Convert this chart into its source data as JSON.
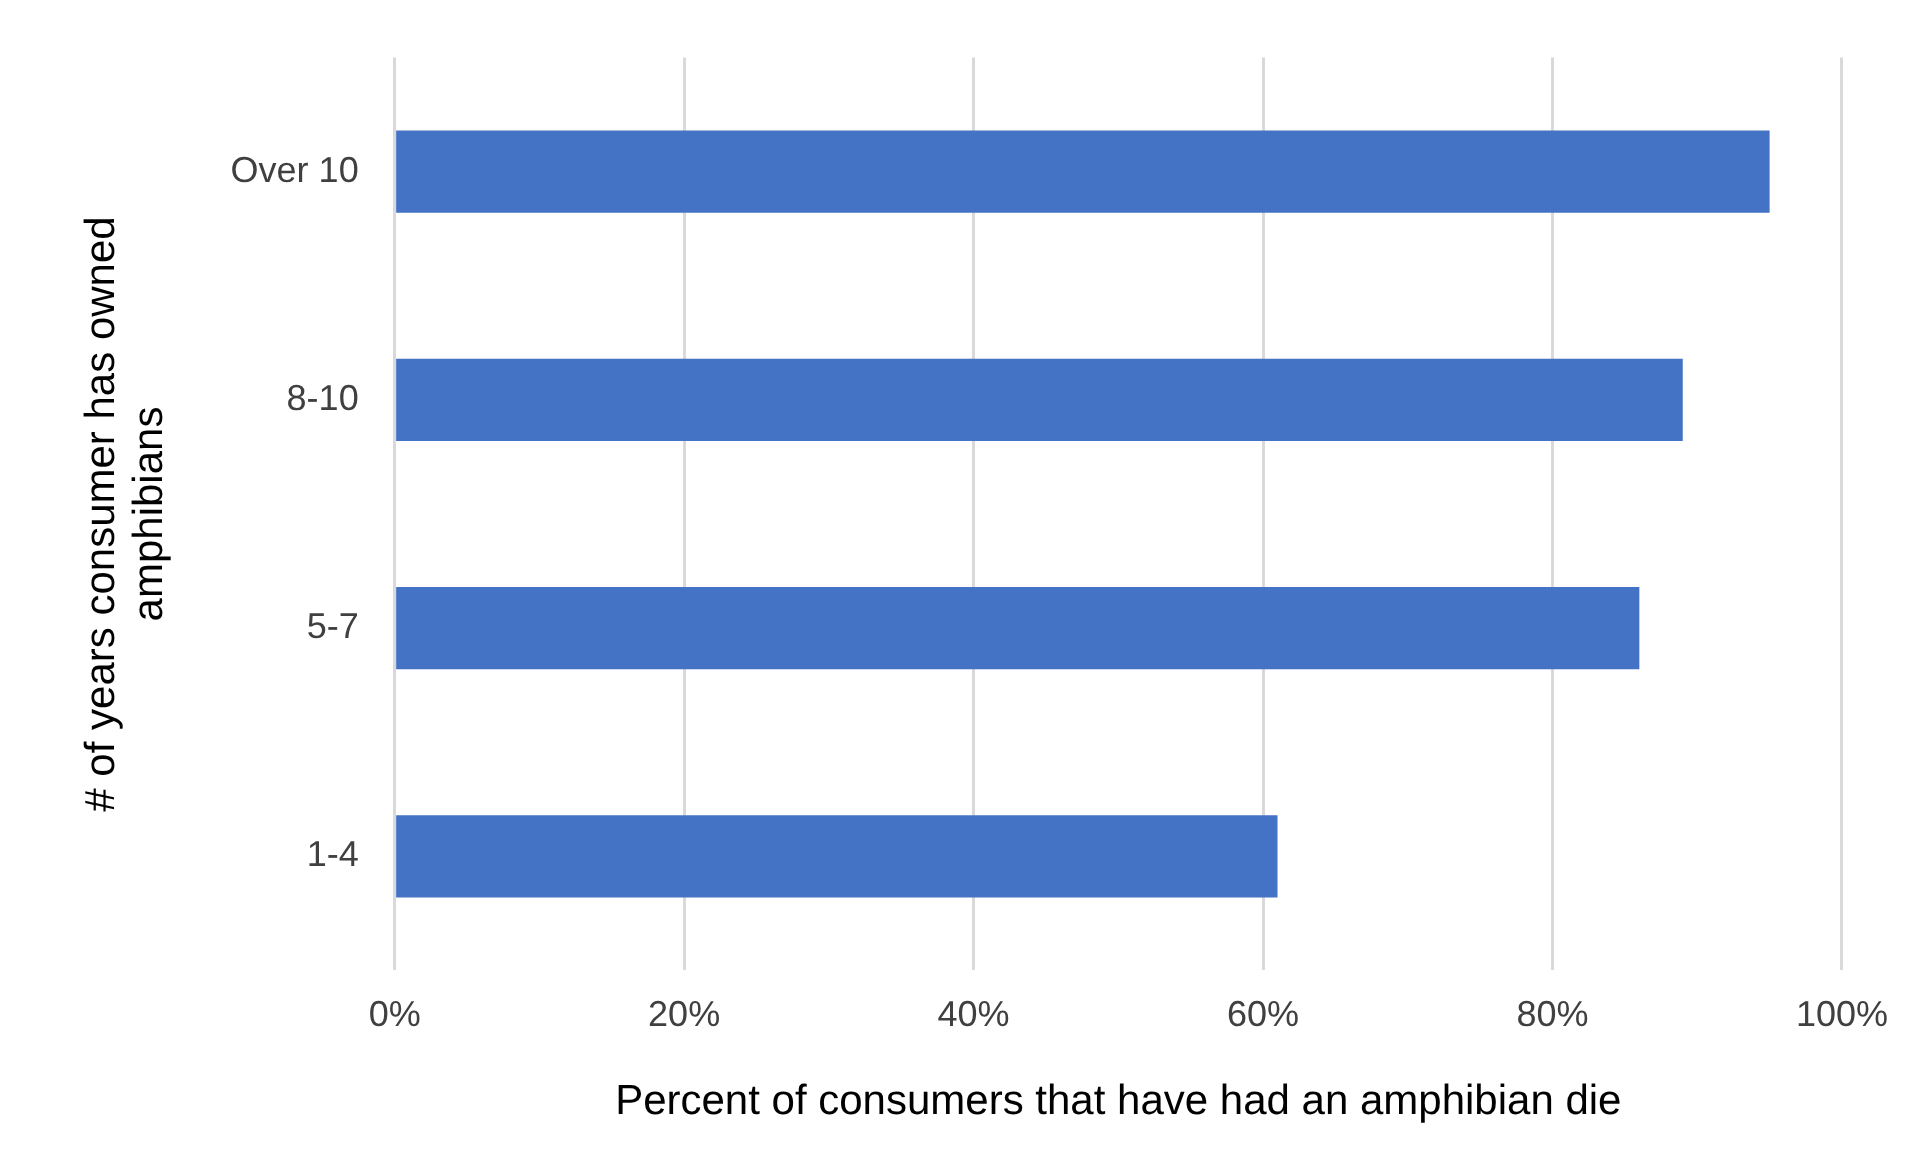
{
  "chart_data": {
    "type": "bar",
    "orientation": "horizontal",
    "xlabel": "Percent of consumers that have had an amphibian die",
    "ylabel": "# of years consumer has owned amphibians",
    "categories": [
      "Over 10",
      "8-10",
      "5-7",
      "1-4"
    ],
    "series": [
      {
        "color": "#4472c4",
        "values": [
          95,
          89,
          86,
          61
        ]
      }
    ],
    "xlim": [
      0,
      100
    ],
    "xticks": [
      {
        "value": 0,
        "label": "0%"
      },
      {
        "value": 20,
        "label": "20%"
      },
      {
        "value": 40,
        "label": "40%"
      },
      {
        "value": 60,
        "label": "60%"
      },
      {
        "value": 80,
        "label": "80%"
      },
      {
        "value": 100,
        "label": "100%"
      }
    ],
    "grid": "x",
    "legend": false
  }
}
